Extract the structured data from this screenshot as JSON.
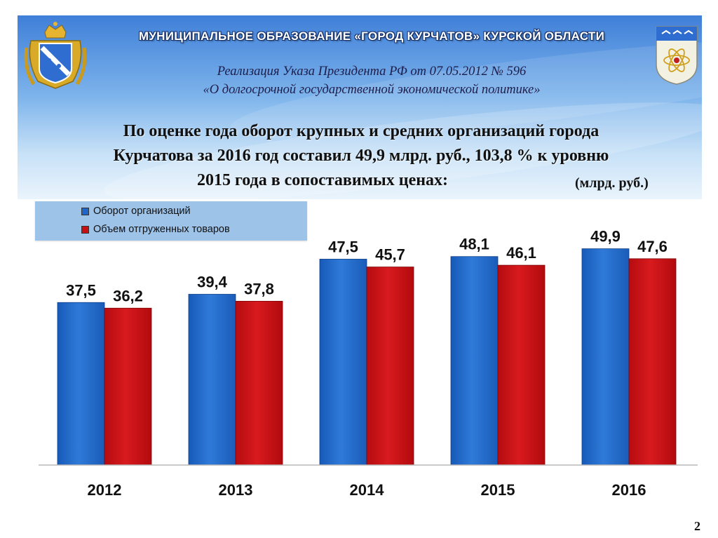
{
  "header": {
    "title": "МУНИЦИПАЛЬНОЕ ОБРАЗОВАНИЕ «ГОРОД КУРЧАТОВ» КУРСКОЙ ОБЛАСТИ",
    "subtitle_line1": "Реализация Указа Президента РФ от 07.05.2012 № 596",
    "subtitle_line2": "«О долгосрочной государственной экономической политике»"
  },
  "headline": {
    "line1": "По оценке года оборот крупных и средних организаций города",
    "line2": "Курчатова за  2016 год составил 49,9 млрд. руб., 103,8 % к уровню",
    "line3": "2015 года в сопоставимых ценах:",
    "units": "(млрд. руб.)"
  },
  "emblems": {
    "left": "kursk-oblast-coat-of-arms-icon",
    "right": "kurchatov-city-coat-of-arms-icon"
  },
  "colors": {
    "blue": "#1f66c8",
    "blue_light": "#4d8fe2",
    "red": "#c81014",
    "red_light": "#e2383b"
  },
  "page_number": "2",
  "chart_data": {
    "type": "bar",
    "title": "",
    "xlabel": "",
    "ylabel": "",
    "ylim": [
      0,
      55
    ],
    "grid": false,
    "legend_position": "top-left",
    "categories": [
      "2012",
      "2013",
      "2014",
      "2015",
      "2016"
    ],
    "series": [
      {
        "name": "Оборот организаций",
        "color": "#1f66c8",
        "values": [
          37.5,
          39.4,
          47.5,
          48.1,
          49.9
        ],
        "labels": [
          "37,5",
          "39,4",
          "47,5",
          "48,1",
          "49,9"
        ]
      },
      {
        "name": "Объем отгруженных товаров",
        "color": "#c81014",
        "values": [
          36.2,
          37.8,
          45.7,
          46.1,
          47.6
        ],
        "labels": [
          "36,2",
          "37,8",
          "45,7",
          "46,1",
          "47,6"
        ]
      }
    ]
  }
}
